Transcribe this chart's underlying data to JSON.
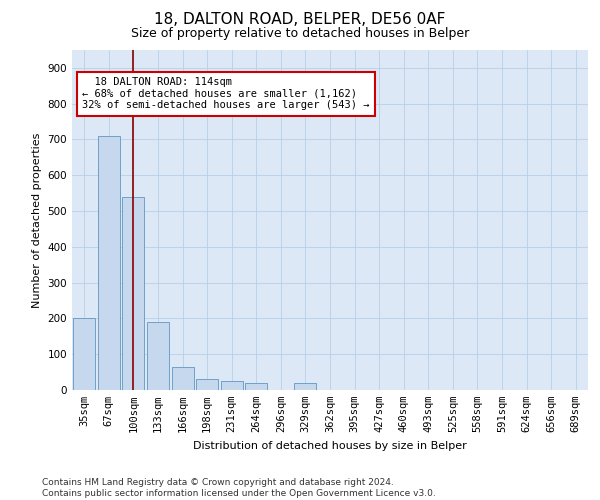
{
  "title": "18, DALTON ROAD, BELPER, DE56 0AF",
  "subtitle": "Size of property relative to detached houses in Belper",
  "xlabel": "Distribution of detached houses by size in Belper",
  "ylabel": "Number of detached properties",
  "categories": [
    "35sqm",
    "67sqm",
    "100sqm",
    "133sqm",
    "166sqm",
    "198sqm",
    "231sqm",
    "264sqm",
    "296sqm",
    "329sqm",
    "362sqm",
    "395sqm",
    "427sqm",
    "460sqm",
    "493sqm",
    "525sqm",
    "558sqm",
    "591sqm",
    "624sqm",
    "656sqm",
    "689sqm"
  ],
  "values": [
    200,
    710,
    540,
    190,
    65,
    30,
    25,
    20,
    0,
    20,
    0,
    0,
    0,
    0,
    0,
    0,
    0,
    0,
    0,
    0,
    0
  ],
  "bar_color": "#c5d8ee",
  "bar_edge_color": "#6fa0c8",
  "vline_x_index": 2.0,
  "vline_color": "#8b0000",
  "annotation_box_text": "  18 DALTON ROAD: 114sqm\n← 68% of detached houses are smaller (1,162)\n32% of semi-detached houses are larger (543) →",
  "annotation_box_color": "#cc0000",
  "annotation_box_fill": "white",
  "ylim": [
    0,
    950
  ],
  "yticks": [
    0,
    100,
    200,
    300,
    400,
    500,
    600,
    700,
    800,
    900
  ],
  "footnote": "Contains HM Land Registry data © Crown copyright and database right 2024.\nContains public sector information licensed under the Open Government Licence v3.0.",
  "plot_bg_color": "#dce8f5",
  "grid_color": "#b8cfe8",
  "title_fontsize": 11,
  "subtitle_fontsize": 9,
  "axis_label_fontsize": 8,
  "tick_fontsize": 7.5,
  "annotation_fontsize": 7.5,
  "footnote_fontsize": 6.5
}
